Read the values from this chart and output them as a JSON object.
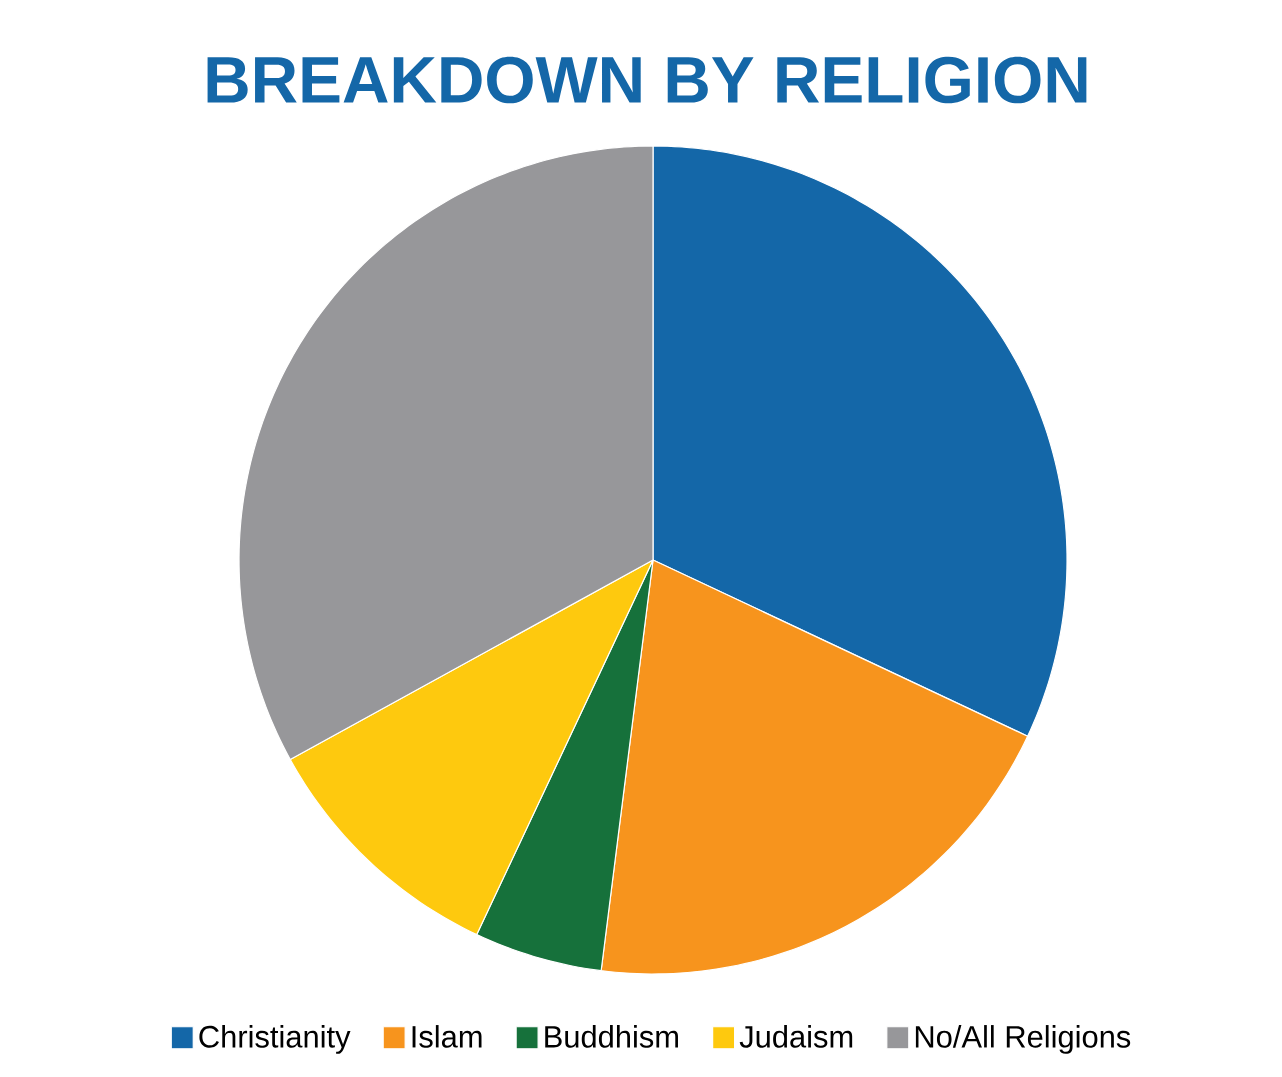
{
  "chart_data": {
    "type": "pie",
    "title": "BREAKDOWN BY RELIGION",
    "categories": [
      "Christianity",
      "Islam",
      "Buddhism",
      "Judaism",
      "No/All Religions"
    ],
    "values": [
      32,
      20,
      5,
      10,
      33
    ],
    "colors": [
      "#1467a8",
      "#f7941d",
      "#16713b",
      "#fec90e",
      "#97979a"
    ],
    "legend": "bottom"
  }
}
